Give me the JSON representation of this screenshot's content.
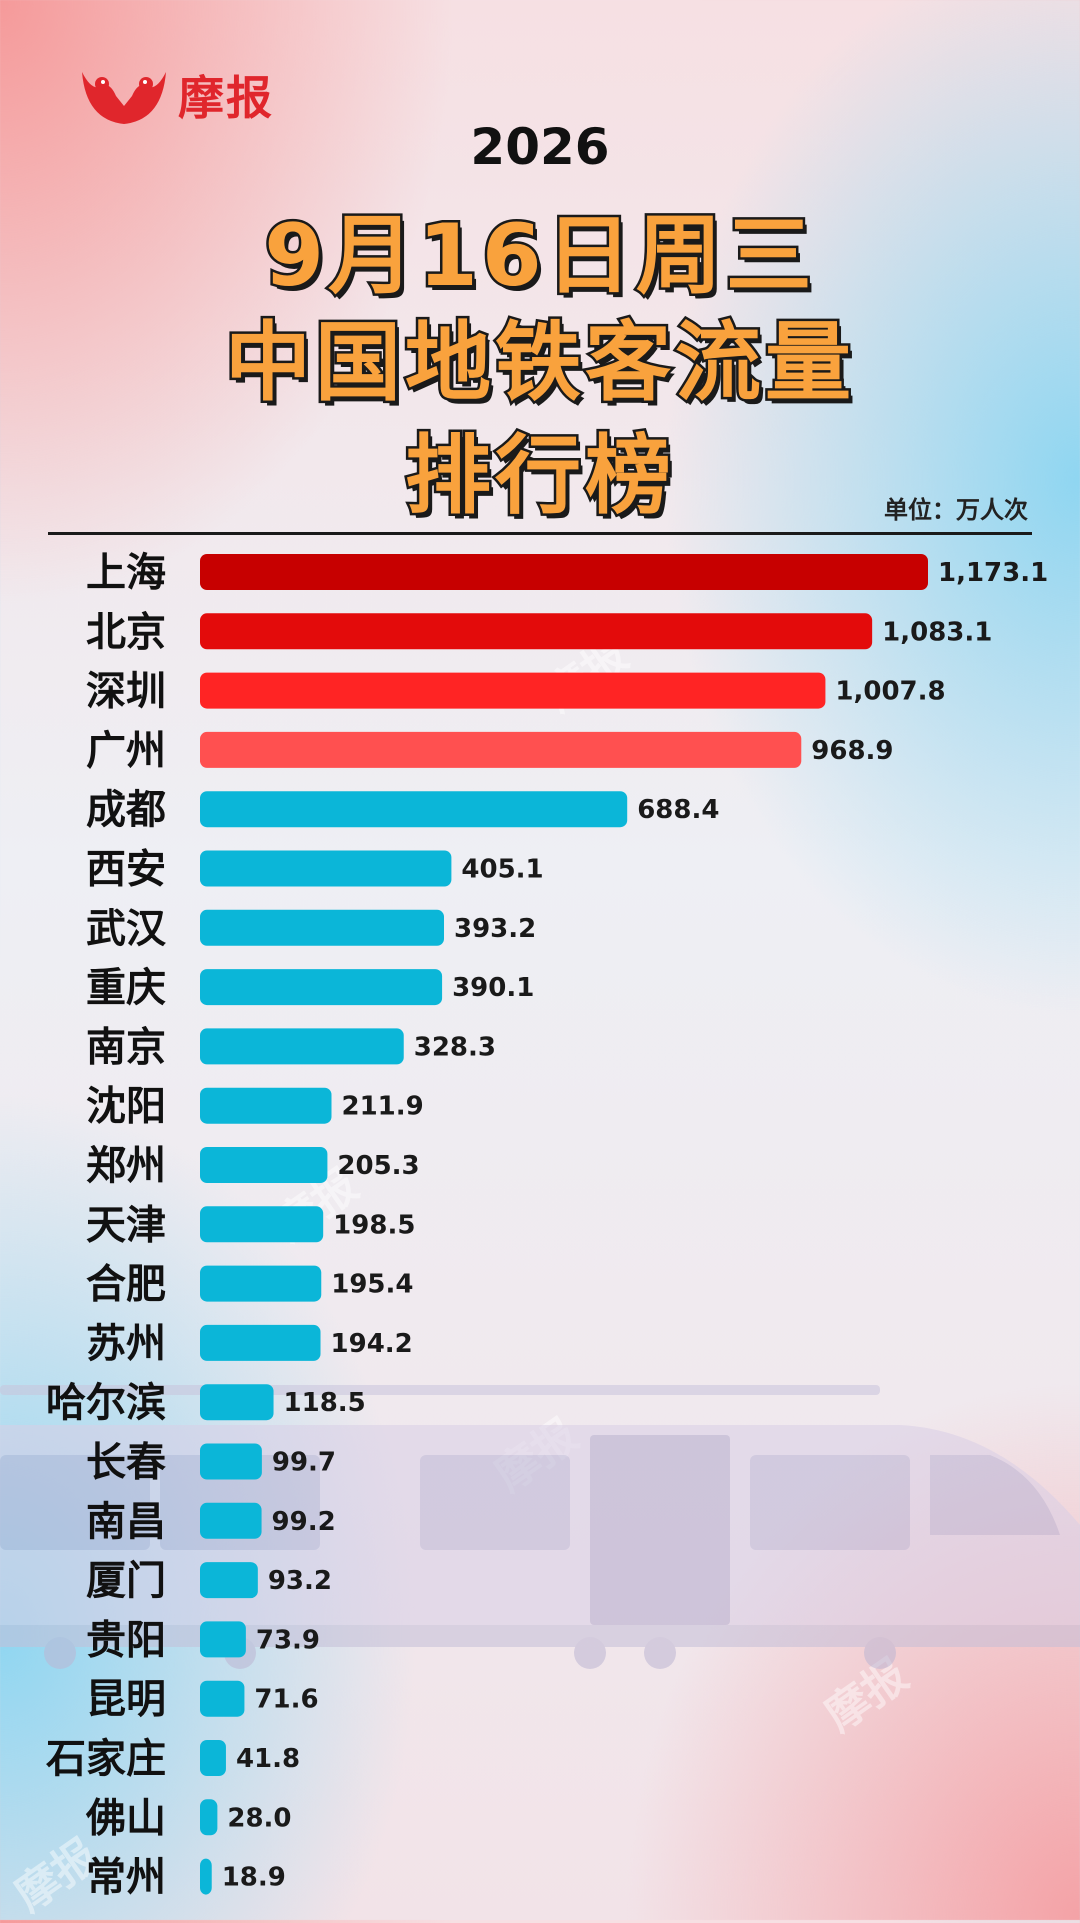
{
  "brand": {
    "name": "摩报",
    "watermark": "摩报"
  },
  "title": {
    "year": "2026",
    "line1": "9月16日周三",
    "line2": "中国地铁客流量",
    "line3": "排行榜"
  },
  "unit_label": "单位：万人次",
  "colors": {
    "top1": "#c70000",
    "top2": "#e30b0b",
    "top3": "#ff2424",
    "top4": "#ff5050",
    "rest": "#0bb6d8",
    "value_text": "#1a1a1a"
  },
  "chart_data": {
    "type": "bar",
    "orientation": "horizontal",
    "title": "中国地铁客流量排行榜",
    "unit": "万人次",
    "categories": [
      "上海",
      "北京",
      "深圳",
      "广州",
      "成都",
      "西安",
      "武汉",
      "重庆",
      "南京",
      "沈阳",
      "郑州",
      "天津",
      "合肥",
      "苏州",
      "哈尔滨",
      "长春",
      "南昌",
      "厦门",
      "贵阳",
      "昆明",
      "石家庄",
      "佛山",
      "常州"
    ],
    "values": [
      1173.1,
      1083.1,
      1007.8,
      968.9,
      688.4,
      405.1,
      393.2,
      390.1,
      328.3,
      211.9,
      205.3,
      198.5,
      195.4,
      194.2,
      118.5,
      99.7,
      99.2,
      93.2,
      73.9,
      71.6,
      41.8,
      28.0,
      18.9
    ],
    "value_labels": [
      "1,173.1",
      "1,083.1",
      "1,007.8",
      "968.9",
      "688.4",
      "405.1",
      "393.2",
      "390.1",
      "328.3",
      "211.9",
      "205.3",
      "198.5",
      "195.4",
      "194.2",
      "118.5",
      "99.7",
      "99.2",
      "93.2",
      "73.9",
      "71.6",
      "41.8",
      "28.0",
      "18.9"
    ],
    "xlim": [
      0,
      1173.1
    ],
    "grid": false
  }
}
